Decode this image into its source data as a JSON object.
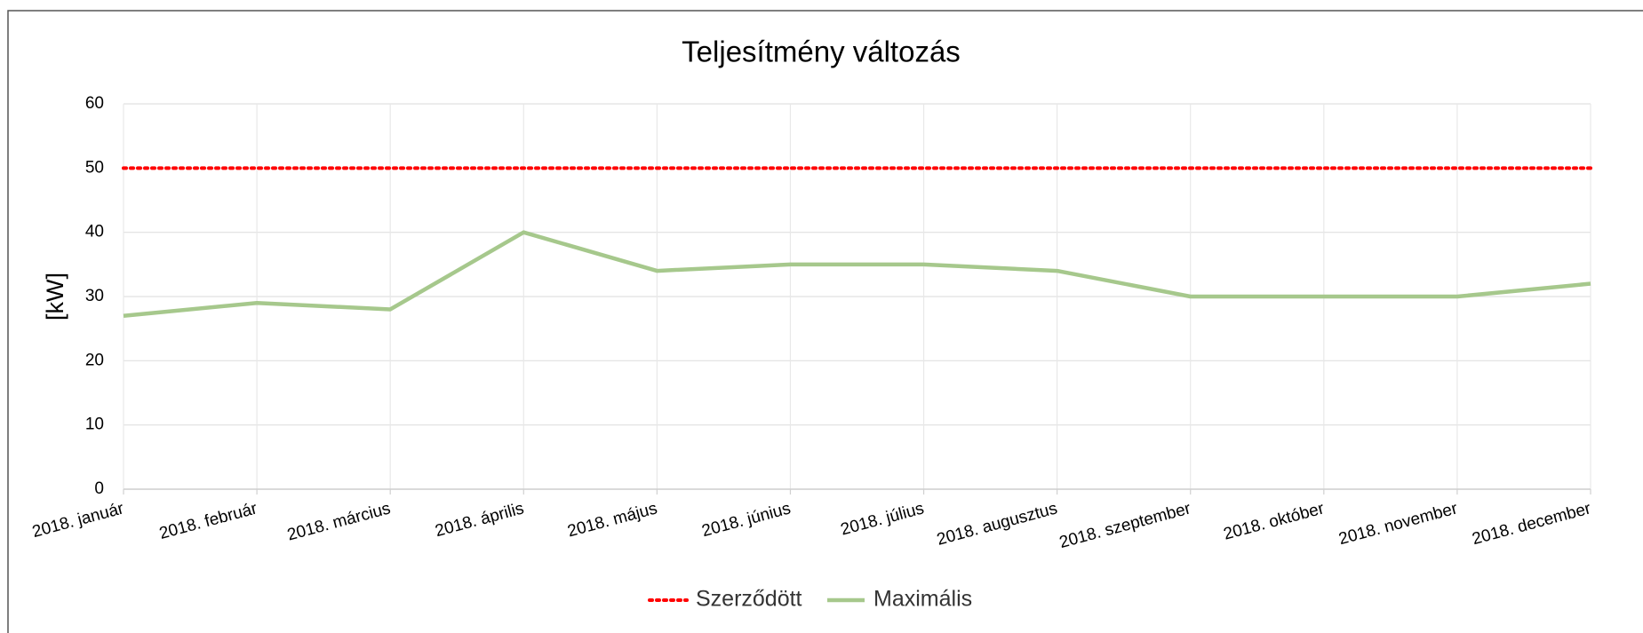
{
  "chart_data": {
    "type": "line",
    "title": "Teljesítmény változás",
    "y_label": "[kW]",
    "categories": [
      "2018. január",
      "2018. február",
      "2018. március",
      "2018. április",
      "2018. május",
      "2018. június",
      "2018. július",
      "2018. augusztus",
      "2018. szeptember",
      "2018. október",
      "2018. november",
      "2018. december"
    ],
    "series": [
      {
        "name": "Szerződött",
        "color": "#ff0000",
        "dash": "dotted",
        "values": [
          50,
          50,
          50,
          50,
          50,
          50,
          50,
          50,
          50,
          50,
          50,
          50
        ]
      },
      {
        "name": "Maximális",
        "color": "#a6c88c",
        "dash": "solid",
        "values": [
          27,
          29,
          28,
          40,
          34,
          35,
          35,
          34,
          30,
          30,
          30,
          32
        ]
      }
    ],
    "ylim": [
      0,
      60
    ],
    "yticks": [
      0,
      10,
      20,
      30,
      40,
      50,
      60
    ],
    "grid": true,
    "legend": "bottom"
  }
}
